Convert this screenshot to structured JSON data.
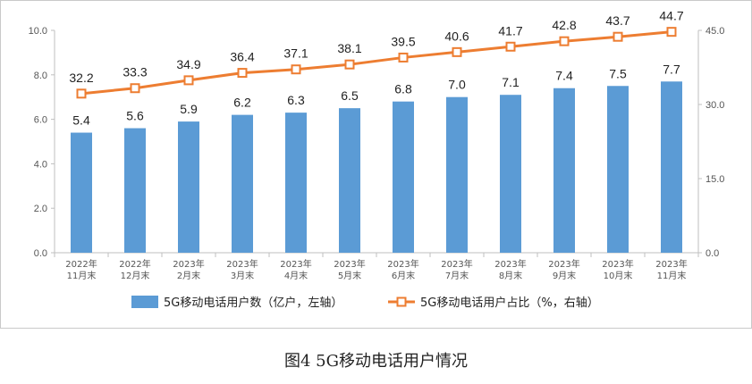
{
  "caption": "图4 5G移动电话用户情况",
  "chart_data": {
    "type": "bar+line",
    "categories": [
      [
        "2022年",
        "11月末"
      ],
      [
        "2022年",
        "12月末"
      ],
      [
        "2023年",
        "2月末"
      ],
      [
        "2023年",
        "3月末"
      ],
      [
        "2023年",
        "4月末"
      ],
      [
        "2023年",
        "5月末"
      ],
      [
        "2023年",
        "6月末"
      ],
      [
        "2023年",
        "7月末"
      ],
      [
        "2023年",
        "8月末"
      ],
      [
        "2023年",
        "9月末"
      ],
      [
        "2023年",
        "10月末"
      ],
      [
        "2023年",
        "11月末"
      ]
    ],
    "series": [
      {
        "name": "5G移动电话用户数（亿户，左轴）",
        "type": "bar",
        "axis": "left",
        "color": "#5b9bd5",
        "values": [
          5.4,
          5.6,
          5.9,
          6.2,
          6.3,
          6.5,
          6.8,
          7.0,
          7.1,
          7.4,
          7.5,
          7.7
        ],
        "labels": [
          "5.4",
          "5.6",
          "5.9",
          "6.2",
          "6.3",
          "6.5",
          "6.8",
          "7.0",
          "7.1",
          "7.4",
          "7.5",
          "7.7"
        ]
      },
      {
        "name": "5G移动电话用户占比（%，右轴）",
        "type": "line",
        "axis": "right",
        "color": "#ed7d31",
        "values": [
          32.2,
          33.3,
          34.9,
          36.4,
          37.1,
          38.1,
          39.5,
          40.6,
          41.7,
          42.8,
          43.7,
          44.7
        ],
        "labels": [
          "32.2",
          "33.3",
          "34.9",
          "36.4",
          "37.1",
          "38.1",
          "39.5",
          "40.6",
          "41.7",
          "42.8",
          "43.7",
          "44.7"
        ]
      }
    ],
    "left_axis": {
      "min": 0,
      "max": 10,
      "ticks": [
        "0.0",
        "2.0",
        "4.0",
        "6.0",
        "8.0",
        "10.0"
      ]
    },
    "right_axis": {
      "min": 0,
      "max": 45,
      "ticks": [
        "0.0",
        "15.0",
        "30.0",
        "45.0"
      ]
    },
    "grid": false,
    "legend_position": "bottom"
  }
}
